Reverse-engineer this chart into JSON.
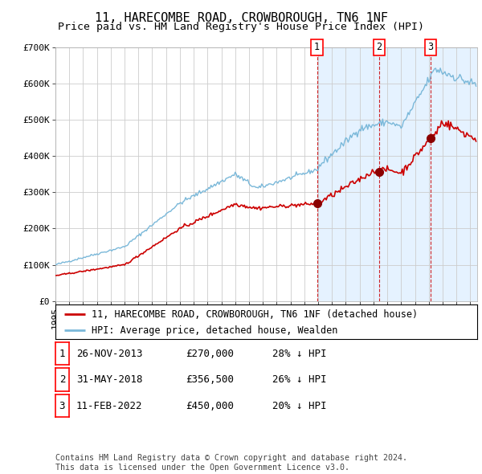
{
  "title": "11, HARECOMBE ROAD, CROWBOROUGH, TN6 1NF",
  "subtitle": "Price paid vs. HM Land Registry's House Price Index (HPI)",
  "ylabel_values": [
    "£0",
    "£100K",
    "£200K",
    "£300K",
    "£400K",
    "£500K",
    "£600K",
    "£700K"
  ],
  "ylim": [
    0,
    700000
  ],
  "xlim_start": 1995.0,
  "xlim_end": 2025.5,
  "hpi_color": "#7ab8d9",
  "price_color": "#cc0000",
  "sale_marker_color": "#8b0000",
  "dashed_line_color": "#cc0000",
  "shade_color": "#ddeeff",
  "background_color": "#ffffff",
  "grid_color": "#cccccc",
  "legend_label_price": "11, HARECOMBE ROAD, CROWBOROUGH, TN6 1NF (detached house)",
  "legend_label_hpi": "HPI: Average price, detached house, Wealden",
  "sales": [
    {
      "num": 1,
      "date": "26-NOV-2013",
      "price": 270000,
      "year": 2013.91,
      "hpi_pct": "28% ↓ HPI"
    },
    {
      "num": 2,
      "date": "31-MAY-2018",
      "price": 356500,
      "year": 2018.42,
      "hpi_pct": "26% ↓ HPI"
    },
    {
      "num": 3,
      "date": "11-FEB-2022",
      "price": 450000,
      "year": 2022.12,
      "hpi_pct": "20% ↓ HPI"
    }
  ],
  "table_rows": [
    [
      "1",
      "26-NOV-2013",
      "£270,000",
      "28% ↓ HPI"
    ],
    [
      "2",
      "31-MAY-2018",
      "£356,500",
      "26% ↓ HPI"
    ],
    [
      "3",
      "11-FEB-2022",
      "£450,000",
      "20% ↓ HPI"
    ]
  ],
  "footnote": "Contains HM Land Registry data © Crown copyright and database right 2024.\nThis data is licensed under the Open Government Licence v3.0.",
  "title_fontsize": 11,
  "subtitle_fontsize": 9.5,
  "tick_fontsize": 8,
  "legend_fontsize": 8.5,
  "table_fontsize": 9
}
